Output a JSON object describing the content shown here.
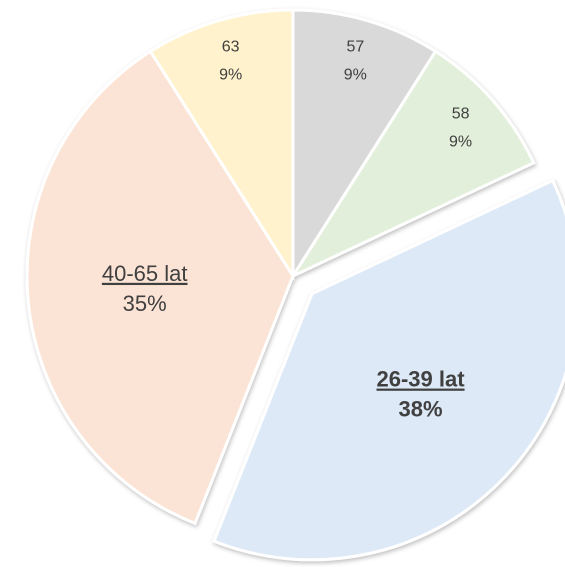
{
  "chart_data": {
    "type": "pie",
    "categories": [
      "57",
      "58",
      "26-39 lat",
      "40-65 lat",
      "63"
    ],
    "values": [
      9,
      9,
      38,
      35,
      9
    ],
    "value_labels": [
      "9%",
      "9%",
      "38%",
      "35%",
      "9%"
    ],
    "colors": [
      "#d9d9d9",
      "#e2efda",
      "#dde9f6",
      "#fbe4d5",
      "#fff2cc"
    ],
    "explode": [
      0,
      0,
      1,
      0,
      0
    ],
    "underline": [
      false,
      false,
      true,
      true,
      false
    ]
  }
}
